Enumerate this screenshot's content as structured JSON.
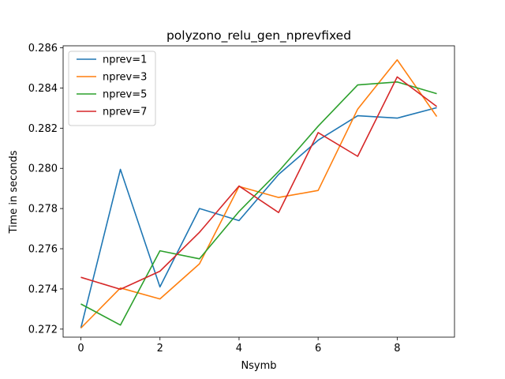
{
  "chart_data": {
    "type": "line",
    "title": "polyzono_relu_gen_nprevfixed",
    "xlabel": "Nsymb",
    "ylabel": "Time in seconds",
    "xlim": [
      -0.45,
      9.45
    ],
    "ylim": [
      0.2716,
      0.2861
    ],
    "xticks": [
      "0",
      "2",
      "4",
      "6",
      "8"
    ],
    "yticks": [
      "0.272",
      "0.274",
      "0.276",
      "0.278",
      "0.280",
      "0.282",
      "0.284",
      "0.286"
    ],
    "grid": false,
    "legend_position": "upper-left",
    "x": [
      0,
      1,
      2,
      3,
      4,
      5,
      6,
      7,
      8,
      9
    ],
    "series": [
      {
        "name": "nprev=1",
        "color": "#1f77b4",
        "values": [
          0.27205,
          0.27995,
          0.2741,
          0.278,
          0.2774,
          0.2797,
          0.2814,
          0.28262,
          0.2825,
          0.28302
        ]
      },
      {
        "name": "nprev=3",
        "color": "#ff7f0e",
        "values": [
          0.27205,
          0.27405,
          0.2735,
          0.27525,
          0.2791,
          0.27855,
          0.2789,
          0.28295,
          0.2854,
          0.28258
        ]
      },
      {
        "name": "nprev=5",
        "color": "#2ca02c",
        "values": [
          0.27325,
          0.2722,
          0.2759,
          0.2755,
          0.27785,
          0.27985,
          0.2821,
          0.28415,
          0.2843,
          0.28372
        ]
      },
      {
        "name": "nprev=7",
        "color": "#d62728",
        "values": [
          0.27458,
          0.27398,
          0.27488,
          0.27682,
          0.27912,
          0.2778,
          0.28178,
          0.2806,
          0.28455,
          0.28308
        ]
      }
    ]
  }
}
